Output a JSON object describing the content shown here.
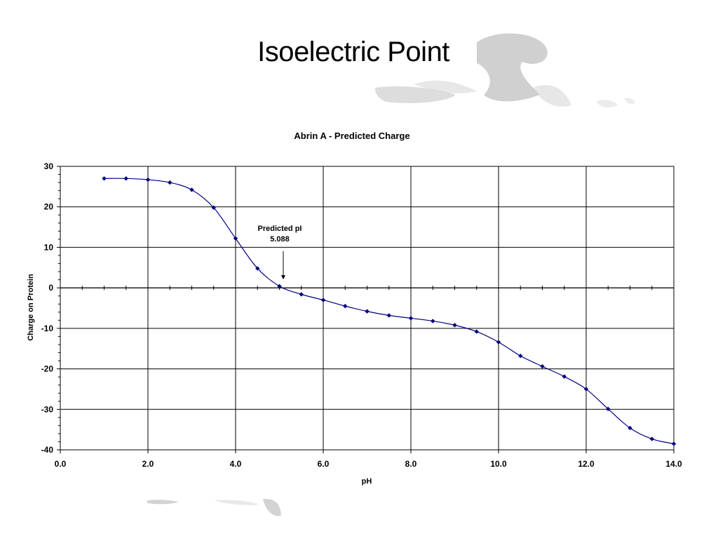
{
  "slide": {
    "title": "Isoelectric Point"
  },
  "decoration": {
    "watermark_icon": "swirl-watermark-icon",
    "watermark_color": "#c8c8c8"
  },
  "chart_data": {
    "type": "line",
    "title": "Abrin A - Predicted Charge",
    "xlabel": "pH",
    "ylabel": "Charge on Protein",
    "xlim": [
      0,
      14
    ],
    "ylim": [
      -40,
      30
    ],
    "x_ticks": [
      "0.0",
      "2.0",
      "4.0",
      "6.0",
      "8.0",
      "10.0",
      "12.0",
      "14.0"
    ],
    "y_ticks": [
      "30",
      "20",
      "10",
      "0",
      "-10",
      "-20",
      "-30",
      "-40"
    ],
    "grid": true,
    "line_color": "#000080",
    "marker": "diamond",
    "series": [
      {
        "x": [
          1.0,
          1.5,
          2.0,
          2.5,
          3.0,
          3.5,
          4.0,
          4.5,
          5.0,
          5.5,
          6.0,
          6.5,
          7.0,
          7.5,
          8.0,
          8.5,
          9.0,
          9.5,
          10.0,
          10.5,
          11.0,
          11.5,
          12.0,
          12.5,
          13.0,
          13.5,
          14.0
        ],
        "y": [
          27.0,
          27.0,
          26.7,
          26.0,
          24.2,
          19.8,
          12.2,
          4.8,
          0.4,
          -1.6,
          -3.0,
          -4.5,
          -5.8,
          -6.8,
          -7.5,
          -8.2,
          -9.2,
          -10.8,
          -13.4,
          -16.8,
          -19.4,
          -21.9,
          -25.0,
          -29.9,
          -34.6,
          -37.3,
          -38.5
        ]
      }
    ],
    "annotation": {
      "line1": "Predicted pI",
      "line2": "5.088",
      "x": 5.088,
      "y": 0
    }
  }
}
